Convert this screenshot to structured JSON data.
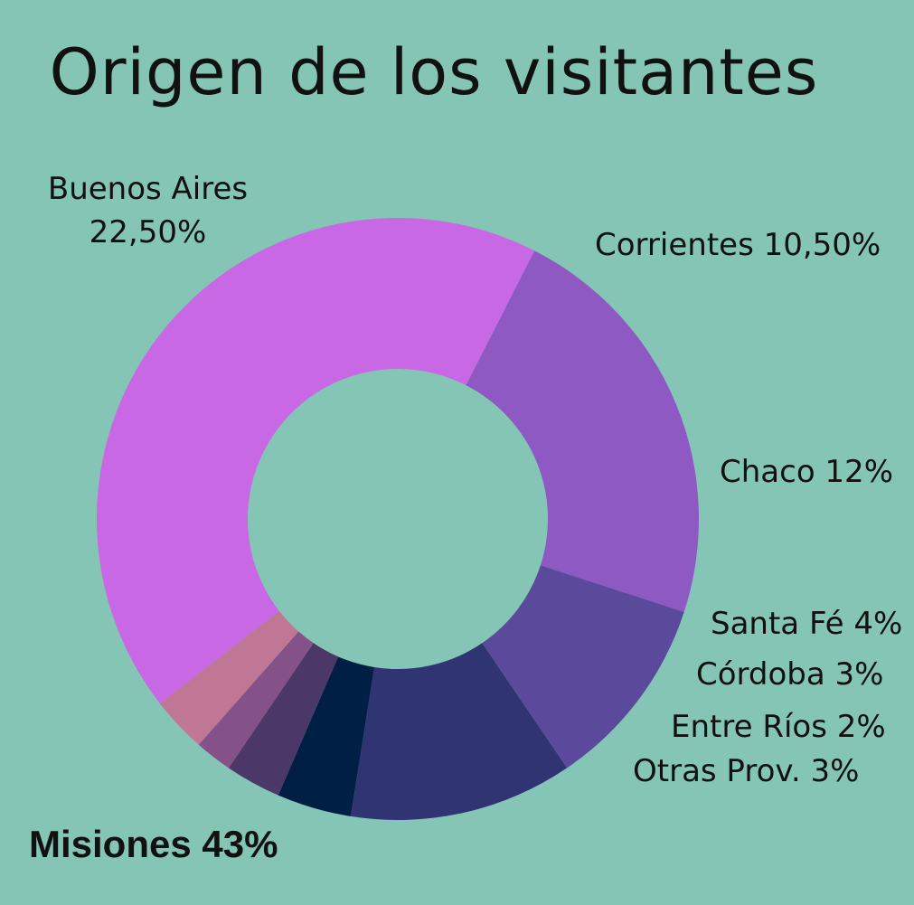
{
  "chart_data": {
    "type": "pie",
    "style": "donut",
    "title": "Origen de los visitantes",
    "categories": [
      "Buenos Aires",
      "Corrientes",
      "Chaco",
      "Santa Fé",
      "Córdoba",
      "Entre Ríos",
      "Otras Prov.",
      "Misiones"
    ],
    "values": [
      22.5,
      10.5,
      12,
      4,
      3,
      2,
      3,
      43
    ],
    "colors": [
      "#8e59c3",
      "#5b4a9c",
      "#313473",
      "#001f45",
      "#4c3868",
      "#845188",
      "#c07795",
      "#c968e4"
    ],
    "labels": [
      {
        "name": "Buenos Aires",
        "text_line1": "Buenos Aires",
        "text_line2": "22,50%"
      },
      {
        "name": "Corrientes",
        "text": "Corrientes 10,50%"
      },
      {
        "name": "Chaco",
        "text": "Chaco 12%"
      },
      {
        "name": "Santa Fé",
        "text": "Santa Fé 4%"
      },
      {
        "name": "Córdoba",
        "text": "Córdoba 3%"
      },
      {
        "name": "Entre Ríos",
        "text": "Entre Ríos 2%"
      },
      {
        "name": "Otras Prov.",
        "text": "Otras Prov. 3%"
      },
      {
        "name": "Misiones",
        "text": "Misiones 43%"
      }
    ],
    "start_angle_deg": -63,
    "legend": "none",
    "background": "#85c5b5"
  }
}
